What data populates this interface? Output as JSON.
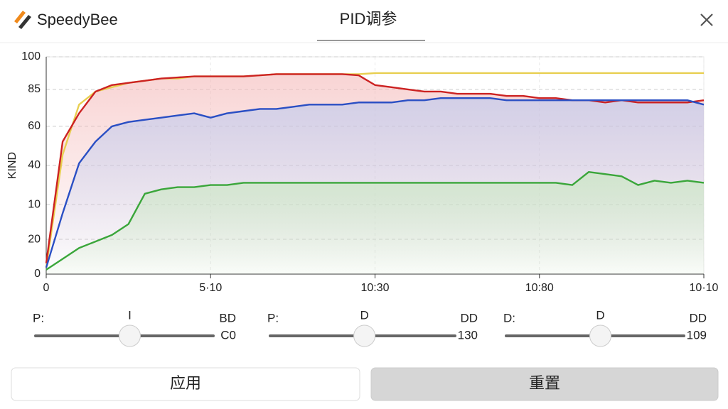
{
  "header": {
    "brand": "SpeedyBee",
    "title": "PID调参"
  },
  "chart_data": {
    "type": "line",
    "ylabel": "KIND",
    "x": [
      0,
      1,
      2,
      3,
      4,
      5,
      6,
      7,
      8,
      9,
      10,
      11,
      12,
      13,
      14,
      15,
      16,
      17,
      18,
      19,
      20,
      21,
      22,
      23,
      24,
      25,
      26,
      27,
      28,
      29,
      30,
      31,
      32,
      33,
      34,
      35,
      36,
      37,
      38,
      39,
      40
    ],
    "xlim": [
      0,
      40
    ],
    "xticks": [
      0,
      {
        "value": 10,
        "label": "5·10"
      },
      {
        "value": 20,
        "label": "10:30"
      },
      {
        "value": 30,
        "label": "10:80"
      },
      {
        "value": 40,
        "label": "10·10"
      }
    ],
    "ylim": [
      0,
      100
    ],
    "yticks": [
      0,
      {
        "value": 16,
        "label": "20"
      },
      {
        "value": 32,
        "label": "10"
      },
      {
        "value": 50,
        "label": "40"
      },
      {
        "value": 68,
        "label": "60"
      },
      85,
      100
    ],
    "grid": true,
    "series": [
      {
        "color": "#e8cf50",
        "values": [
          3,
          55,
          78,
          84,
          86,
          88,
          89,
          90,
          90,
          91,
          91,
          91,
          91,
          91.5,
          92,
          92,
          92,
          92,
          92,
          92,
          92.5,
          92.5,
          92.5,
          92.5,
          92.5,
          92.5,
          92.5,
          92.5,
          92.5,
          92.5,
          92.5,
          92.5,
          92.5,
          92.5,
          92.5,
          92.5,
          92.5,
          92.5,
          92.5,
          92.5,
          92.5
        ]
      },
      {
        "color": "#cc2222",
        "values": [
          5,
          61,
          74,
          84,
          87,
          88,
          89,
          90,
          90.5,
          91,
          91,
          91,
          91,
          91.5,
          92,
          92,
          92,
          92,
          92,
          91.5,
          87,
          86,
          85,
          84,
          84,
          83,
          83,
          83,
          82,
          82,
          81,
          81,
          80,
          80,
          79,
          80,
          79,
          79,
          79,
          79,
          80
        ]
      },
      {
        "color": "#2a4fc4",
        "values": [
          3,
          28,
          51,
          61,
          68,
          70,
          71,
          72,
          73,
          74,
          72,
          74,
          75,
          76,
          76,
          77,
          78,
          78,
          78,
          79,
          79,
          79,
          80,
          80,
          81,
          81,
          81,
          81,
          80,
          80,
          80,
          80,
          80,
          80,
          80,
          80,
          80,
          80,
          80,
          80,
          78
        ]
      },
      {
        "color": "#3aa63a",
        "values": [
          2,
          7,
          12,
          15,
          18,
          23,
          37,
          39,
          40,
          40,
          41,
          41,
          42,
          42,
          42,
          42,
          42,
          42,
          42,
          42,
          42,
          42,
          42,
          42,
          42,
          42,
          42,
          42,
          42,
          42,
          42,
          42,
          41,
          47,
          46,
          45,
          41,
          43,
          42,
          43,
          42
        ]
      }
    ]
  },
  "sliders": [
    {
      "label": "P:",
      "center": "I",
      "right_label": "BD",
      "value_text": "C0"
    },
    {
      "label": "P:",
      "center": "D",
      "right_label": "DD",
      "value_text": "130"
    },
    {
      "label": "D:",
      "center": "D",
      "right_label": "DD",
      "value_text": "109"
    }
  ],
  "buttons": [
    "应用",
    "重置"
  ]
}
